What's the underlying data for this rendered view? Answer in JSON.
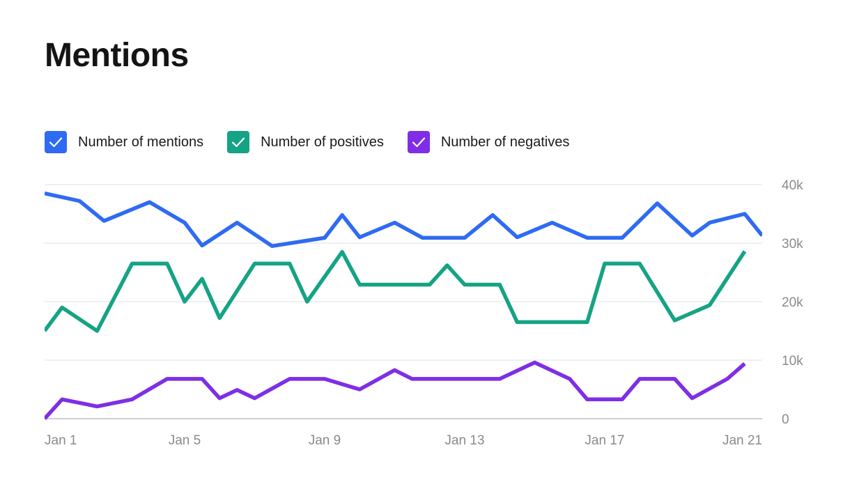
{
  "title": "Mentions",
  "legend": [
    {
      "label": "Number of mentions",
      "color": "#2f6bf2",
      "checked": true,
      "icon": "check-icon"
    },
    {
      "label": "Number of positives",
      "color": "#15a385",
      "checked": true,
      "icon": "check-icon"
    },
    {
      "label": "Number of negatives",
      "color": "#7f2ee5",
      "checked": true,
      "icon": "check-icon"
    }
  ],
  "chart_data": {
    "type": "line",
    "x": [
      "Jan 1",
      "Jan 2",
      "Jan 3",
      "Jan 4",
      "Jan 5",
      "Jan 6",
      "Jan 7",
      "Jan 8",
      "Jan 9",
      "Jan 10",
      "Jan 11",
      "Jan 12",
      "Jan 13",
      "Jan 14",
      "Jan 15",
      "Jan 16",
      "Jan 17",
      "Jan 18",
      "Jan 19",
      "Jan 20",
      "Jan 21"
    ],
    "x_tick_labels": [
      "Jan 1",
      "Jan 5",
      "Jan 9",
      "Jan 13",
      "Jan 17",
      "Jan 21"
    ],
    "y_tick_labels": [
      "0",
      "10k",
      "20k",
      "30k",
      "40k"
    ],
    "ylim": [
      0,
      40000
    ],
    "y_ticks": [
      0,
      10000,
      20000,
      30000,
      40000
    ],
    "grid": true,
    "y_axis_position": "right",
    "legend_position": "top-left",
    "series": [
      {
        "name": "Number of mentions",
        "color": "#2f6bf2",
        "points": [
          [
            "Jan 1",
            38500
          ],
          [
            "Jan 2",
            37200
          ],
          [
            "Jan 2.7",
            33800
          ],
          [
            "Jan 4",
            37000
          ],
          [
            "Jan 5",
            33500
          ],
          [
            "Jan 5.5",
            29600
          ],
          [
            "Jan 6.5",
            33500
          ],
          [
            "Jan 7.5",
            29500
          ],
          [
            "Jan 9",
            30900
          ],
          [
            "Jan 9.5",
            34800
          ],
          [
            "Jan 10",
            31000
          ],
          [
            "Jan 11",
            33500
          ],
          [
            "Jan 11.8",
            30900
          ],
          [
            "Jan 13",
            30900
          ],
          [
            "Jan 13.8",
            34800
          ],
          [
            "Jan 14.5",
            31000
          ],
          [
            "Jan 15.5",
            33500
          ],
          [
            "Jan 16.5",
            30900
          ],
          [
            "Jan 17.5",
            30900
          ],
          [
            "Jan 18.5",
            36800
          ],
          [
            "Jan 19.5",
            31300
          ],
          [
            "Jan 20",
            33500
          ],
          [
            "Jan 21",
            35000
          ],
          [
            "Jan 21.5",
            31300
          ]
        ]
      },
      {
        "name": "Number of positives",
        "color": "#15a385",
        "points": [
          [
            "Jan 1",
            15000
          ],
          [
            "Jan 1.5",
            19000
          ],
          [
            "Jan 2.5",
            15000
          ],
          [
            "Jan 3.5",
            26500
          ],
          [
            "Jan 4.5",
            26500
          ],
          [
            "Jan 5",
            20000
          ],
          [
            "Jan 5.5",
            23900
          ],
          [
            "Jan 6",
            17200
          ],
          [
            "Jan 7",
            26500
          ],
          [
            "Jan 8",
            26500
          ],
          [
            "Jan 8.5",
            20000
          ],
          [
            "Jan 9.5",
            28500
          ],
          [
            "Jan 10",
            22900
          ],
          [
            "Jan 12",
            22900
          ],
          [
            "Jan 12.5",
            26200
          ],
          [
            "Jan 13",
            22900
          ],
          [
            "Jan 14",
            22900
          ],
          [
            "Jan 14.5",
            16500
          ],
          [
            "Jan 16.5",
            16500
          ],
          [
            "Jan 17",
            26500
          ],
          [
            "Jan 18",
            26500
          ],
          [
            "Jan 19",
            16800
          ],
          [
            "Jan 20",
            19400
          ],
          [
            "Jan 21",
            28600
          ]
        ]
      },
      {
        "name": "Number of negatives",
        "color": "#7f2ee5",
        "points": [
          [
            "Jan 1",
            0
          ],
          [
            "Jan 1.5",
            3300
          ],
          [
            "Jan 2.5",
            2100
          ],
          [
            "Jan 3.5",
            3300
          ],
          [
            "Jan 4.5",
            6800
          ],
          [
            "Jan 5.5",
            6800
          ],
          [
            "Jan 6",
            3500
          ],
          [
            "Jan 6.5",
            4900
          ],
          [
            "Jan 7",
            3500
          ],
          [
            "Jan 8",
            6800
          ],
          [
            "Jan 9",
            6800
          ],
          [
            "Jan 10",
            5000
          ],
          [
            "Jan 11",
            8300
          ],
          [
            "Jan 11.5",
            6800
          ],
          [
            "Jan 13",
            6800
          ],
          [
            "Jan 14",
            6800
          ],
          [
            "Jan 15",
            9600
          ],
          [
            "Jan 16",
            6800
          ],
          [
            "Jan 16.5",
            3300
          ],
          [
            "Jan 17.5",
            3300
          ],
          [
            "Jan 18",
            6800
          ],
          [
            "Jan 19",
            6800
          ],
          [
            "Jan 19.5",
            3500
          ],
          [
            "Jan 20.5",
            6800
          ],
          [
            "Jan 21",
            9400
          ]
        ]
      }
    ]
  }
}
